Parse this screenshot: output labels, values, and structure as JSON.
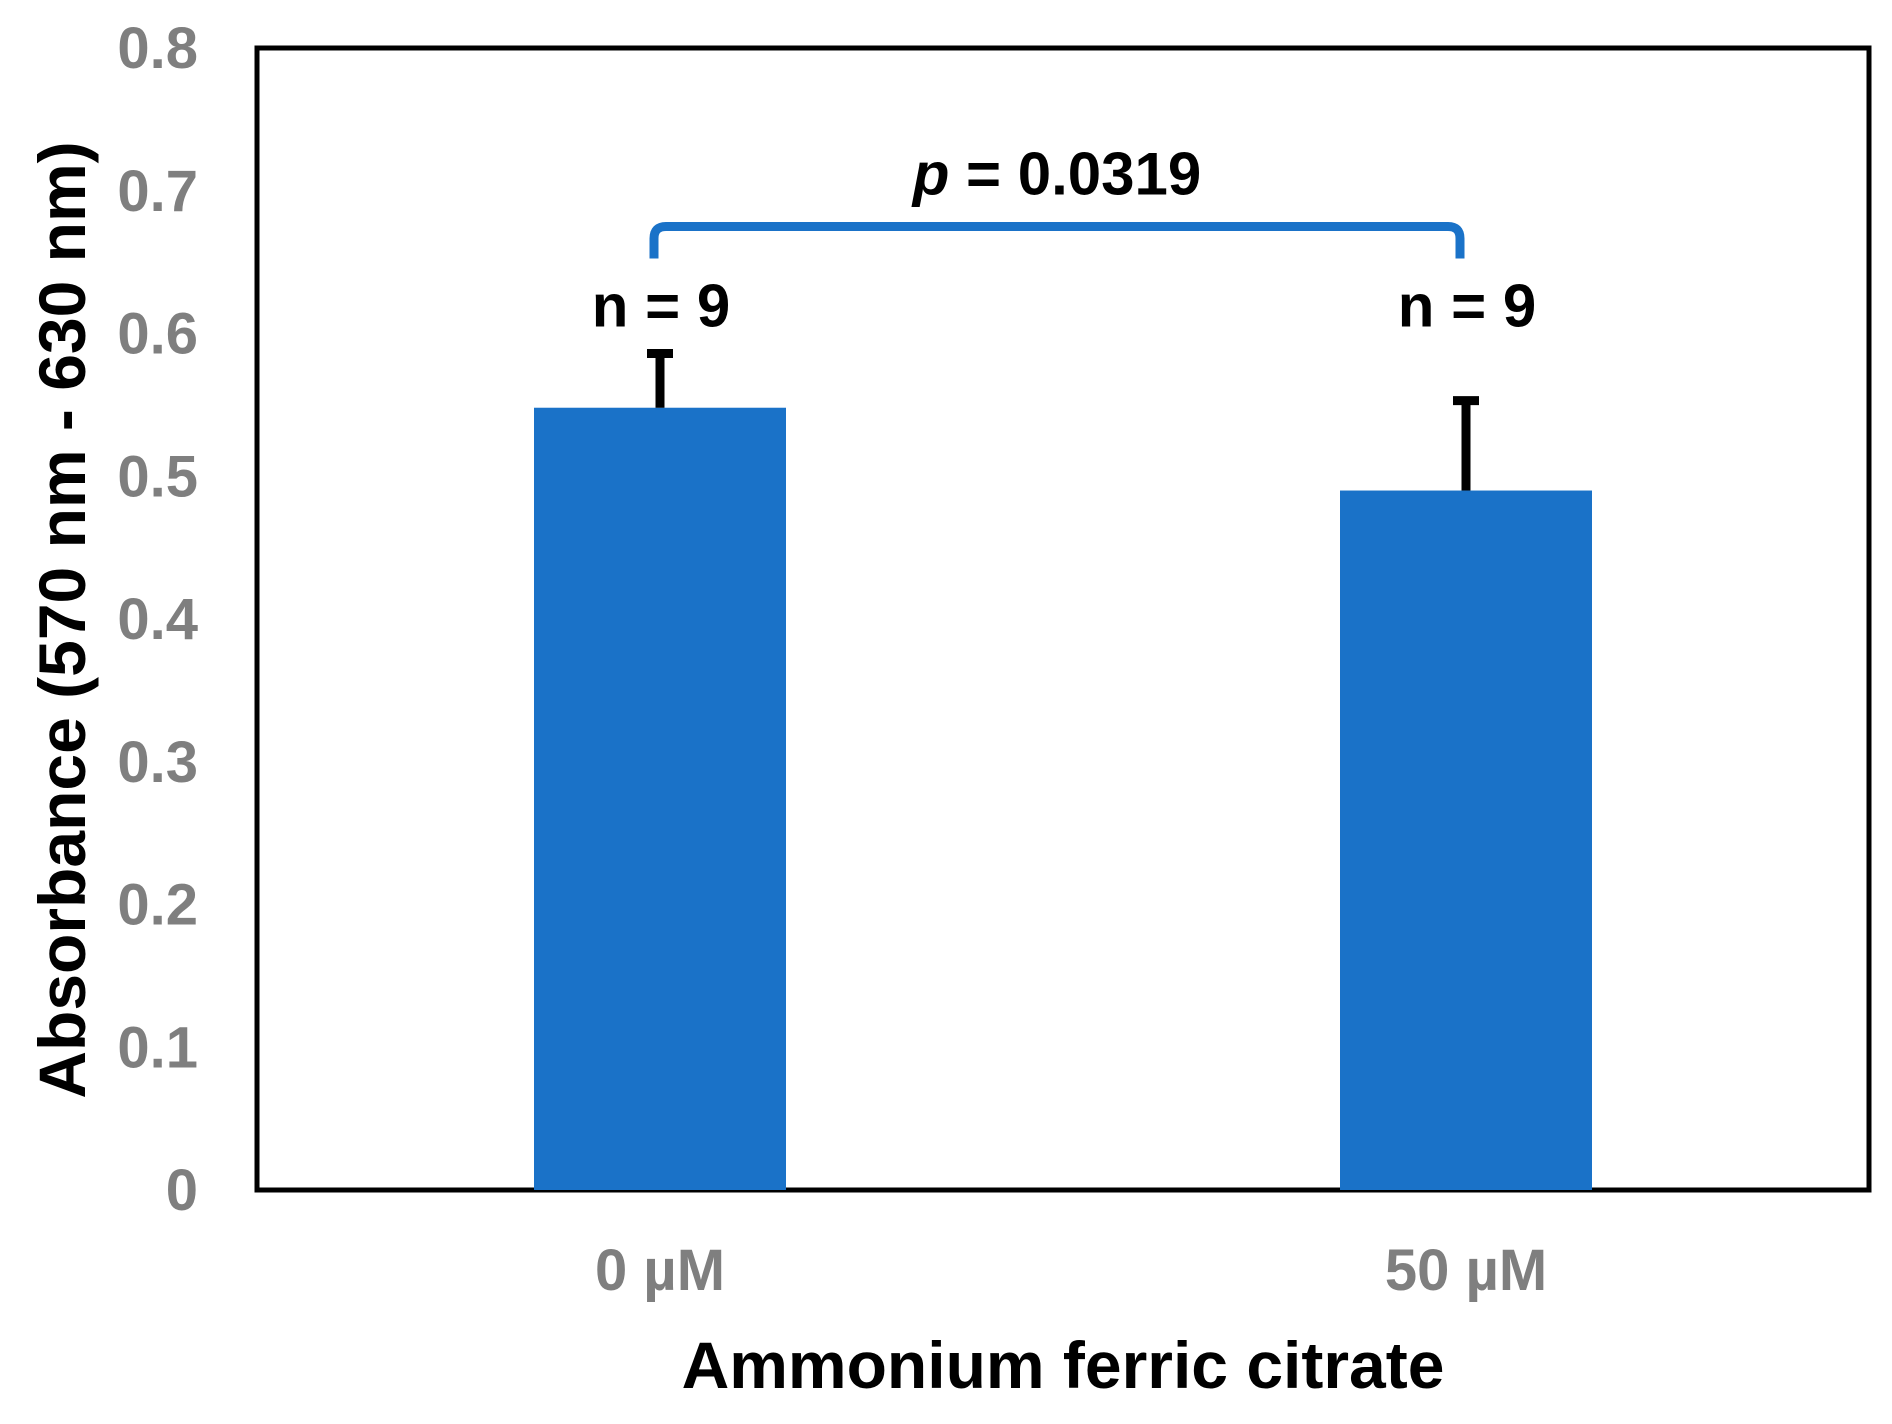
{
  "chart_data": {
    "type": "bar",
    "categories": [
      "0 µM",
      "50 µM"
    ],
    "values": [
      0.548,
      0.49
    ],
    "error_upper": [
      0.586,
      0.553
    ],
    "n_labels": [
      "n = 9",
      "n = 9"
    ],
    "xlabel": "Ammonium ferric citrate",
    "ylabel": "Absorbance (570 nm - 630 nm)",
    "ylim": [
      0,
      0.8
    ],
    "y_ticks": [
      "0",
      "0.1",
      "0.2",
      "0.3",
      "0.4",
      "0.5",
      "0.6",
      "0.7",
      "0.8"
    ],
    "y_tick_values": [
      0,
      0.1,
      0.2,
      0.3,
      0.4,
      0.5,
      0.6,
      0.7,
      0.8
    ],
    "significance": {
      "p_symbol": "p",
      "p_text": " = 0.0319",
      "bracket_height": 0.675
    },
    "grid": false,
    "colors": {
      "bar": "#1a72c8",
      "bracket": "#1a72c8",
      "error_bar": "#000000",
      "tick_label": "#7f7f7f"
    }
  }
}
